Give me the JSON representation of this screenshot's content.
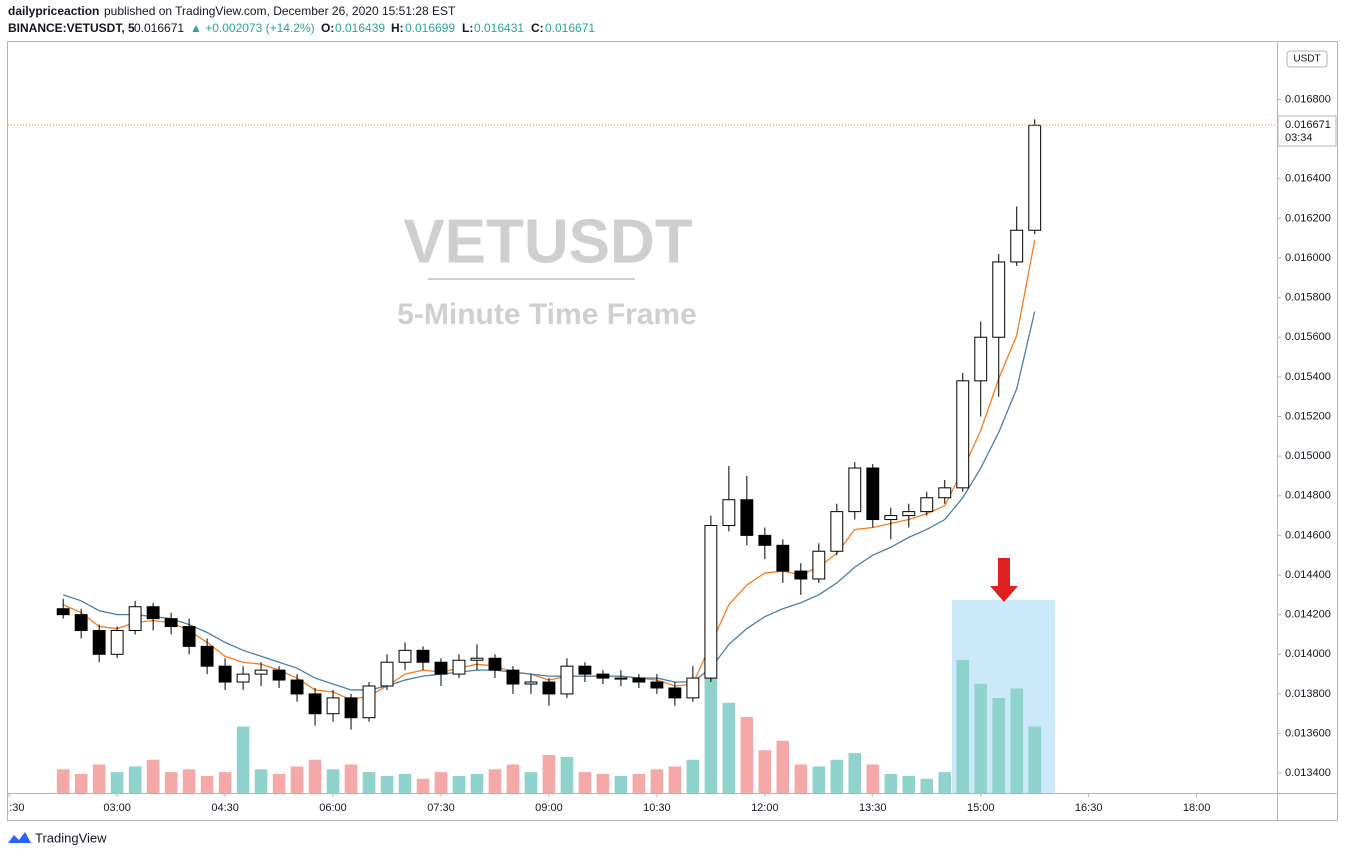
{
  "header": {
    "author": "dailypriceaction",
    "published": "published on TradingView.com, December 26, 2020 15:51:28 EST",
    "symbol": "BINANCE:VETUSDT, 5",
    "last": "0.016671",
    "change": "▲ +0.002073 (+14.2%)",
    "open_label": "O:",
    "open": "0.016439",
    "high_label": "H:",
    "high": "0.016699",
    "low_label": "L:",
    "low": "0.016431",
    "close_label": "C:",
    "close": "0.016671"
  },
  "footer": "TradingView",
  "chart_data": {
    "type": "candlestick",
    "watermark": "VETUSDT",
    "subtitle": "5-Minute Time Frame",
    "currency": "USDT",
    "x": [
      "02:15",
      "02:30",
      "02:45",
      "03:00",
      "03:15",
      "03:30",
      "03:45",
      "04:00",
      "04:15",
      "04:30",
      "04:45",
      "05:00",
      "05:15",
      "05:30",
      "05:45",
      "06:00",
      "06:15",
      "06:30",
      "06:45",
      "07:00",
      "07:15",
      "07:30",
      "07:45",
      "08:00",
      "08:15",
      "08:30",
      "08:45",
      "09:00",
      "09:15",
      "09:30",
      "09:45",
      "10:00",
      "10:15",
      "10:30",
      "10:45",
      "11:00",
      "11:15",
      "11:30",
      "11:45",
      "12:00",
      "12:15",
      "12:30",
      "12:45",
      "13:00",
      "13:15",
      "13:30",
      "13:45",
      "14:00",
      "14:15",
      "14:30",
      "14:45",
      "15:00",
      "15:15",
      "15:30",
      "15:45"
    ],
    "ohlc": [
      [
        0.01423,
        0.01428,
        0.01418,
        0.0142
      ],
      [
        0.0142,
        0.01423,
        0.01408,
        0.01412
      ],
      [
        0.01412,
        0.01415,
        0.01396,
        0.014
      ],
      [
        0.014,
        0.01414,
        0.01398,
        0.01412
      ],
      [
        0.01412,
        0.01427,
        0.0141,
        0.01424
      ],
      [
        0.01424,
        0.01426,
        0.01412,
        0.01418
      ],
      [
        0.01418,
        0.01421,
        0.0141,
        0.01414
      ],
      [
        0.01414,
        0.01418,
        0.014,
        0.01404
      ],
      [
        0.01404,
        0.01408,
        0.0139,
        0.01394
      ],
      [
        0.01394,
        0.01398,
        0.01382,
        0.01386
      ],
      [
        0.01386,
        0.01394,
        0.01382,
        0.0139
      ],
      [
        0.0139,
        0.01396,
        0.01384,
        0.01392
      ],
      [
        0.01392,
        0.01394,
        0.01383,
        0.01387
      ],
      [
        0.01387,
        0.0139,
        0.01376,
        0.0138
      ],
      [
        0.0138,
        0.01383,
        0.01364,
        0.0137
      ],
      [
        0.0137,
        0.01382,
        0.01366,
        0.01378
      ],
      [
        0.01378,
        0.0138,
        0.01362,
        0.01368
      ],
      [
        0.01368,
        0.01386,
        0.01366,
        0.01384
      ],
      [
        0.01384,
        0.014,
        0.01382,
        0.01396
      ],
      [
        0.01396,
        0.01406,
        0.01392,
        0.01402
      ],
      [
        0.01402,
        0.01404,
        0.01392,
        0.01396
      ],
      [
        0.01396,
        0.01398,
        0.01384,
        0.0139
      ],
      [
        0.0139,
        0.014,
        0.01388,
        0.01397
      ],
      [
        0.01397,
        0.01405,
        0.01392,
        0.01398
      ],
      [
        0.01398,
        0.014,
        0.01388,
        0.01392
      ],
      [
        0.01392,
        0.01394,
        0.0138,
        0.01385
      ],
      [
        0.01385,
        0.0139,
        0.0138,
        0.01386
      ],
      [
        0.01386,
        0.01388,
        0.01374,
        0.0138
      ],
      [
        0.0138,
        0.01398,
        0.01378,
        0.01394
      ],
      [
        0.01394,
        0.01396,
        0.01386,
        0.0139
      ],
      [
        0.0139,
        0.01392,
        0.01385,
        0.01388
      ],
      [
        0.01388,
        0.01392,
        0.01384,
        0.01388
      ],
      [
        0.01388,
        0.0139,
        0.01383,
        0.01386
      ],
      [
        0.01386,
        0.0139,
        0.0138,
        0.01383
      ],
      [
        0.01383,
        0.01386,
        0.01374,
        0.01378
      ],
      [
        0.01378,
        0.01394,
        0.01376,
        0.01388
      ],
      [
        0.01388,
        0.0147,
        0.01386,
        0.01465
      ],
      [
        0.01465,
        0.01495,
        0.01462,
        0.01478
      ],
      [
        0.01478,
        0.0149,
        0.01455,
        0.0146
      ],
      [
        0.0146,
        0.01464,
        0.01448,
        0.01455
      ],
      [
        0.01455,
        0.01458,
        0.01436,
        0.01442
      ],
      [
        0.01442,
        0.01446,
        0.0143,
        0.01438
      ],
      [
        0.01438,
        0.01456,
        0.01436,
        0.01452
      ],
      [
        0.01452,
        0.01476,
        0.0145,
        0.01472
      ],
      [
        0.01472,
        0.01497,
        0.01468,
        0.01494
      ],
      [
        0.01494,
        0.01496,
        0.01464,
        0.01468
      ],
      [
        0.01468,
        0.01474,
        0.01458,
        0.0147
      ],
      [
        0.0147,
        0.01476,
        0.01464,
        0.01472
      ],
      [
        0.01472,
        0.01482,
        0.0147,
        0.01479
      ],
      [
        0.01479,
        0.01488,
        0.01476,
        0.01484
      ],
      [
        0.01484,
        0.01542,
        0.01482,
        0.01538
      ],
      [
        0.01538,
        0.01568,
        0.0152,
        0.0156
      ],
      [
        0.0156,
        0.01602,
        0.0153,
        0.01598
      ],
      [
        0.01598,
        0.01626,
        0.01596,
        0.01614
      ],
      [
        0.01614,
        0.0167,
        0.01612,
        0.01667
      ]
    ],
    "volume": [
      25,
      20,
      30,
      22,
      28,
      35,
      22,
      25,
      18,
      22,
      70,
      25,
      20,
      28,
      35,
      25,
      30,
      22,
      18,
      20,
      15,
      22,
      18,
      20,
      25,
      30,
      22,
      40,
      38,
      22,
      20,
      18,
      20,
      25,
      28,
      35,
      130,
      95,
      80,
      45,
      55,
      30,
      28,
      35,
      42,
      30,
      20,
      18,
      15,
      22,
      140,
      115,
      100,
      110,
      70
    ],
    "series": [
      {
        "color": "#f57c1f",
        "values": [
          0.01425,
          0.01421,
          0.01414,
          0.01413,
          0.01416,
          0.01417,
          0.01416,
          0.01412,
          0.01406,
          0.01399,
          0.01396,
          0.01395,
          0.01392,
          0.01388,
          0.01382,
          0.01381,
          0.01377,
          0.01379,
          0.01384,
          0.0139,
          0.01392,
          0.01391,
          0.01393,
          0.01395,
          0.01394,
          0.01391,
          0.0139,
          0.01387,
          0.01389,
          0.01389,
          0.01389,
          0.01389,
          0.01388,
          0.01387,
          0.01384,
          0.01385,
          0.01405,
          0.01425,
          0.01435,
          0.01441,
          0.01442,
          0.0144,
          0.01444,
          0.01451,
          0.01463,
          0.01464,
          0.01466,
          0.01468,
          0.01471,
          0.01475,
          0.01493,
          0.01513,
          0.01539,
          0.01561,
          0.01609
        ]
      },
      {
        "color": "#4a7fa7",
        "values": [
          0.0143,
          0.01427,
          0.01422,
          0.0142,
          0.0142,
          0.01419,
          0.01418,
          0.01415,
          0.01411,
          0.01406,
          0.01402,
          0.01399,
          0.01396,
          0.01393,
          0.01388,
          0.01385,
          0.01382,
          0.01382,
          0.01384,
          0.01387,
          0.01389,
          0.0139,
          0.01391,
          0.01392,
          0.01392,
          0.01391,
          0.0139,
          0.01389,
          0.01389,
          0.01389,
          0.01389,
          0.01389,
          0.01388,
          0.01388,
          0.01386,
          0.01386,
          0.01393,
          0.01405,
          0.01413,
          0.01419,
          0.01423,
          0.01426,
          0.0143,
          0.01436,
          0.01444,
          0.0145,
          0.01454,
          0.01459,
          0.01463,
          0.01468,
          0.01479,
          0.01494,
          0.01512,
          0.01534,
          0.01573
        ]
      }
    ],
    "up_color": "#ffffff",
    "down_color": "#000000",
    "wick_color": "#000000",
    "volume_up_color": "#8fd3cc",
    "volume_down_color": "#f4a9a8",
    "ylim": [
      0.0133,
      0.01709
    ],
    "yticks": [
      {
        "value": 0.0134,
        "label": "0.013400"
      },
      {
        "value": 0.0136,
        "label": "0.013600"
      },
      {
        "value": 0.0138,
        "label": "0.013800"
      },
      {
        "value": 0.014,
        "label": "0.014000"
      },
      {
        "value": 0.0142,
        "label": "0.014200"
      },
      {
        "value": 0.0144,
        "label": "0.014400"
      },
      {
        "value": 0.0146,
        "label": "0.014600"
      },
      {
        "value": 0.0148,
        "label": "0.014800"
      },
      {
        "value": 0.015,
        "label": "0.015000"
      },
      {
        "value": 0.0152,
        "label": "0.015200"
      },
      {
        "value": 0.0154,
        "label": "0.015400"
      },
      {
        "value": 0.0156,
        "label": "0.015600"
      },
      {
        "value": 0.0158,
        "label": "0.015800"
      },
      {
        "value": 0.016,
        "label": "0.016000"
      },
      {
        "value": 0.0162,
        "label": "0.016200"
      },
      {
        "value": 0.0164,
        "label": "0.016400"
      },
      {
        "value": 0.0168,
        "label": "0.016800"
      }
    ],
    "xlim": [
      "01:29",
      "19:07"
    ],
    "xticks": [
      {
        "value": "01:30",
        "label": ":30"
      },
      "03:00",
      "04:30",
      "06:00",
      "07:30",
      "09:00",
      "10:30",
      "12:00",
      "13:30",
      "15:00",
      "16:30",
      "18:00"
    ],
    "vlim": [
      0,
      200
    ],
    "last_price": {
      "value": 0.016671,
      "label": "0.016671"
    },
    "countdown": "03:34",
    "grid": false
  }
}
